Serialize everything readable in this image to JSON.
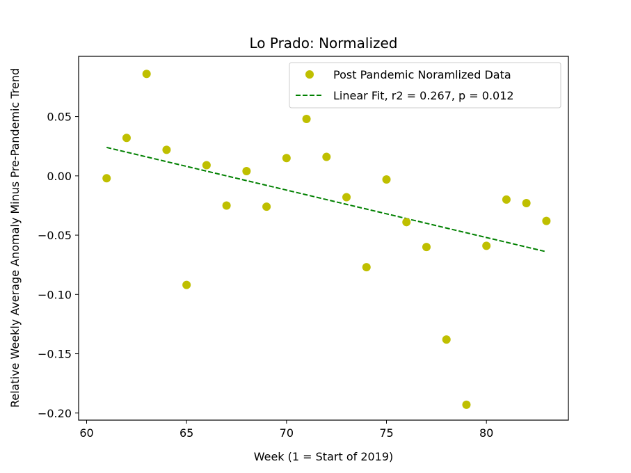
{
  "chart_data": {
    "type": "scatter",
    "title": "Lo Prado: Normalized",
    "xlabel": "Week (1 = Start of 2019)",
    "ylabel": "Relative Weekly Average Anomaly Minus Pre-Pandemic Trend",
    "xlim": [
      59.6,
      84.1
    ],
    "ylim": [
      -0.206,
      0.1008
    ],
    "x_ticks": [
      60,
      65,
      70,
      75,
      80
    ],
    "y_ticks": [
      -0.2,
      -0.15,
      -0.1,
      -0.05,
      0.0,
      0.05
    ],
    "x_tick_labels": [
      "60",
      "65",
      "70",
      "75",
      "80"
    ],
    "y_tick_labels": [
      "−0.20",
      "−0.15",
      "−0.10",
      "−0.05",
      "0.00",
      "0.05"
    ],
    "grid": false,
    "legend_position": "top-right",
    "series": [
      {
        "name": "Post Pandemic Noramlized Data",
        "kind": "scatter",
        "color": "#bfbf00",
        "points": [
          {
            "x": 61,
            "y": -0.002
          },
          {
            "x": 62,
            "y": 0.032
          },
          {
            "x": 63,
            "y": 0.086
          },
          {
            "x": 64,
            "y": 0.022
          },
          {
            "x": 65,
            "y": -0.092
          },
          {
            "x": 66,
            "y": 0.009
          },
          {
            "x": 67,
            "y": -0.025
          },
          {
            "x": 68,
            "y": 0.004
          },
          {
            "x": 69,
            "y": -0.026
          },
          {
            "x": 70,
            "y": 0.015
          },
          {
            "x": 71,
            "y": 0.048
          },
          {
            "x": 72,
            "y": 0.016
          },
          {
            "x": 73,
            "y": -0.018
          },
          {
            "x": 74,
            "y": -0.077
          },
          {
            "x": 75,
            "y": -0.003
          },
          {
            "x": 76,
            "y": -0.039
          },
          {
            "x": 77,
            "y": -0.06
          },
          {
            "x": 78,
            "y": -0.138
          },
          {
            "x": 79,
            "y": -0.193
          },
          {
            "x": 80,
            "y": -0.059
          },
          {
            "x": 81,
            "y": -0.02
          },
          {
            "x": 82,
            "y": -0.023
          },
          {
            "x": 83,
            "y": -0.038
          }
        ]
      },
      {
        "name": "Linear Fit, r2 = 0.267, p = 0.012",
        "kind": "line",
        "style": "dashed",
        "color": "#008000",
        "points": [
          {
            "x": 61,
            "y": 0.024
          },
          {
            "x": 83,
            "y": -0.064
          }
        ]
      }
    ]
  }
}
